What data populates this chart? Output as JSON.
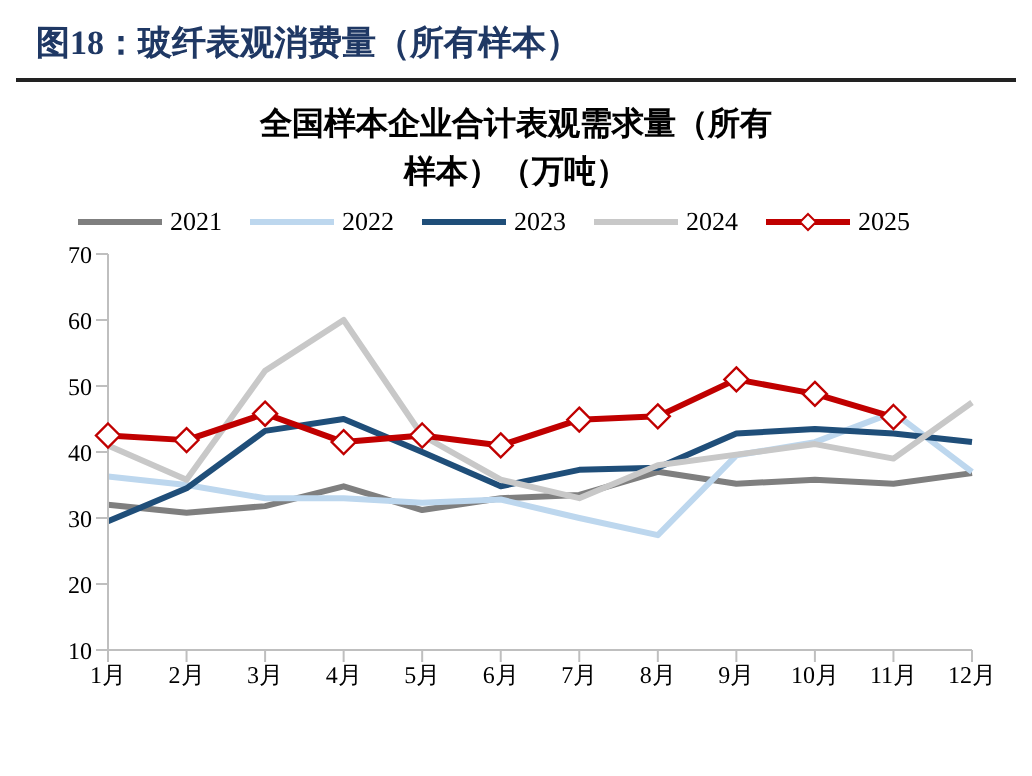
{
  "chart_data": {
    "type": "line",
    "title": "图18：玻纤表观消费量（所有样本）",
    "subtitle": "全国样本企业合计表观需求量（所有样本）（万吨）",
    "categories": [
      "1月",
      "2月",
      "3月",
      "4月",
      "5月",
      "6月",
      "7月",
      "8月",
      "9月",
      "10月",
      "11月",
      "12月"
    ],
    "series": [
      {
        "name": "2021",
        "color": "#7f7f7f",
        "marker": "none",
        "values": [
          32,
          30.8,
          31.8,
          34.8,
          31.2,
          33,
          33.5,
          37,
          35.2,
          35.8,
          35.2,
          36.8
        ]
      },
      {
        "name": "2022",
        "color": "#bdd7ee",
        "marker": "none",
        "values": [
          36.3,
          35,
          33,
          33,
          32.3,
          32.8,
          30,
          27.4,
          39.5,
          41.5,
          46,
          37
        ]
      },
      {
        "name": "2023",
        "color": "#1f4e79",
        "marker": "none",
        "values": [
          29.5,
          34.5,
          43.2,
          45,
          40,
          34.8,
          37.3,
          37.6,
          42.8,
          43.5,
          42.8,
          41.5
        ]
      },
      {
        "name": "2024",
        "color": "#c8c8c8",
        "marker": "none",
        "values": [
          41,
          35.8,
          52.3,
          60,
          42.5,
          35.8,
          33,
          38,
          39.6,
          41.2,
          39,
          47.5
        ]
      },
      {
        "name": "2025",
        "color": "#c00000",
        "marker": "diamond",
        "values": [
          42.5,
          41.8,
          45.8,
          41.5,
          42.5,
          41,
          44.9,
          45.4,
          51,
          48.8,
          45.3,
          null
        ]
      }
    ],
    "ylim": [
      10,
      70
    ],
    "yticks": [
      10,
      20,
      30,
      40,
      50,
      60,
      70
    ],
    "grid": false,
    "legend": "top"
  }
}
